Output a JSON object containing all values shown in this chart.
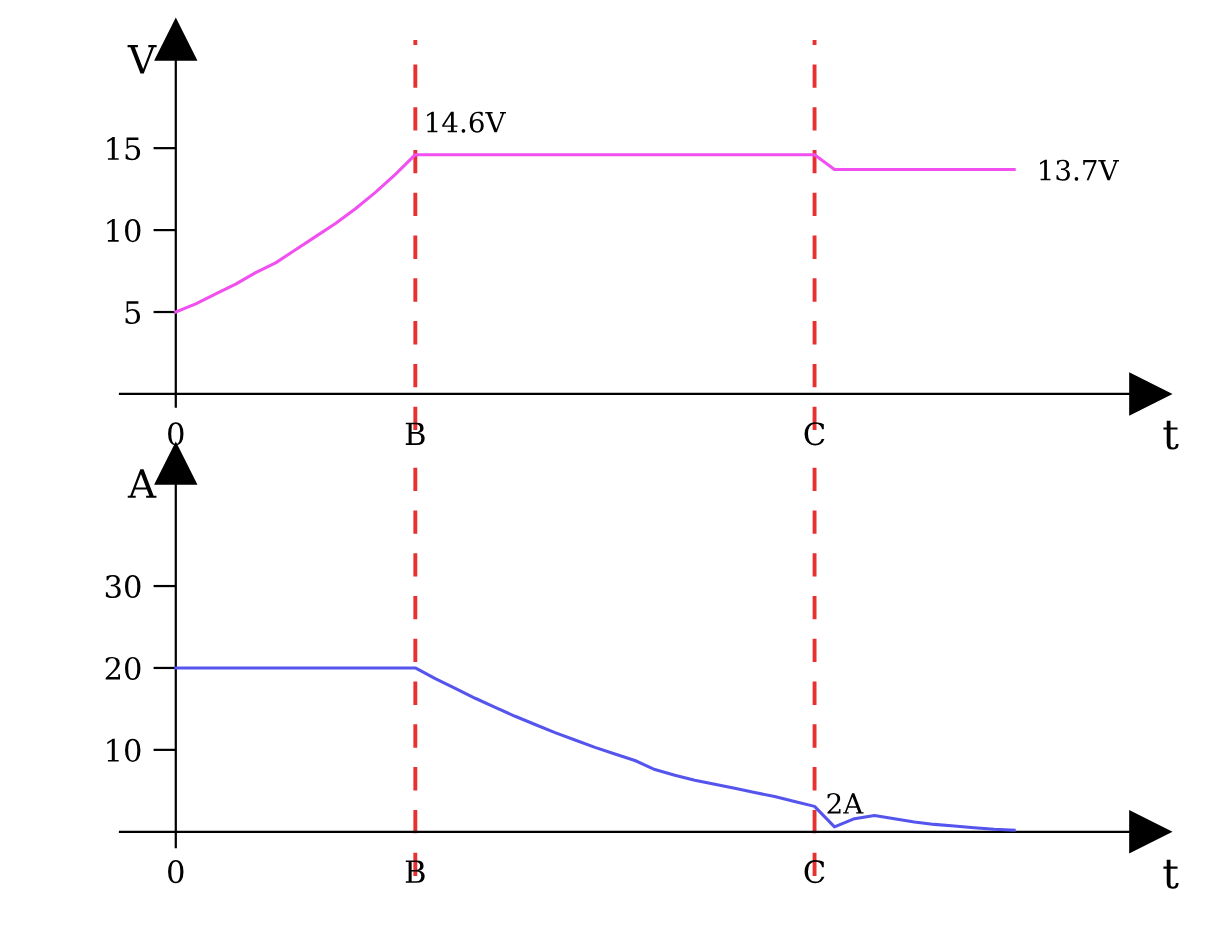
{
  "chart_data": [
    {
      "type": "line",
      "ylabel": "V",
      "xlabel": "t",
      "ylim": [
        -2.2,
        21.6
      ],
      "yticks": [
        5,
        10,
        15
      ],
      "categories": [
        "0",
        null,
        null,
        null,
        null,
        null,
        null,
        null,
        null,
        null,
        null,
        null,
        "B",
        null,
        null,
        null,
        null,
        null,
        null,
        null,
        null,
        null,
        null,
        null,
        null,
        null,
        null,
        null,
        null,
        null,
        null,
        null,
        "C",
        null,
        null,
        null,
        null,
        null,
        null,
        null,
        null,
        null,
        null
      ],
      "series": [
        {
          "color": "#f050f0",
          "values": [
            5.0,
            5.5,
            6.1,
            6.7,
            7.4,
            8.0,
            8.8,
            9.6,
            10.4,
            11.3,
            12.3,
            13.4,
            14.6,
            14.6,
            14.6,
            14.6,
            14.6,
            14.6,
            14.6,
            14.6,
            14.6,
            14.6,
            14.6,
            14.6,
            14.6,
            14.6,
            14.6,
            14.6,
            14.6,
            14.6,
            14.6,
            14.6,
            14.6,
            13.7,
            13.7,
            13.7,
            13.7,
            13.7,
            13.7,
            13.7,
            13.7,
            13.7,
            13.7
          ]
        }
      ],
      "ref_lines": [
        {
          "axis": "x",
          "value": "B",
          "color": "#e83030",
          "line_style": "dashed"
        },
        {
          "axis": "x",
          "value": "C",
          "color": "#e83030",
          "line_style": "dashed"
        }
      ],
      "annotations": [
        {
          "text": "14.6V",
          "x": "B",
          "y": 14.6
        },
        "13.7V"
      ],
      "grid": false,
      "legend": false
    },
    {
      "type": "line",
      "ylabel": "A",
      "xlabel": "t",
      "ylim": [
        -5.4,
        44.9
      ],
      "yticks": [
        10,
        20,
        30
      ],
      "categories": [
        "0",
        null,
        null,
        null,
        null,
        null,
        null,
        null,
        null,
        null,
        null,
        null,
        "B",
        null,
        null,
        null,
        null,
        null,
        null,
        null,
        null,
        null,
        null,
        null,
        null,
        null,
        null,
        null,
        null,
        null,
        null,
        null,
        "C",
        null,
        null,
        null,
        null,
        null,
        null,
        null,
        null,
        null,
        null
      ],
      "series": [
        {
          "color": "#5555ee",
          "values": [
            20,
            20,
            20,
            20,
            20,
            20,
            20,
            20,
            20,
            20,
            20,
            20,
            20,
            18.7,
            17.5,
            16.3,
            15.2,
            14.1,
            13.1,
            12.1,
            11.2,
            10.3,
            9.5,
            8.7,
            7.6,
            6.9,
            6.3,
            5.8,
            5.3,
            4.8,
            4.3,
            3.7,
            3.1,
            0.6,
            1.6,
            2.0,
            1.6,
            1.2,
            0.9,
            0.7,
            0.5,
            0.3,
            0.2
          ]
        }
      ],
      "ref_lines": [
        {
          "axis": "x",
          "value": "B",
          "color": "#e83030",
          "line_style": "dashed"
        },
        {
          "axis": "x",
          "value": "C",
          "color": "#e83030",
          "line_style": "dashed"
        }
      ],
      "annotations": [
        "2A"
      ],
      "grid": false,
      "legend": false
    }
  ]
}
